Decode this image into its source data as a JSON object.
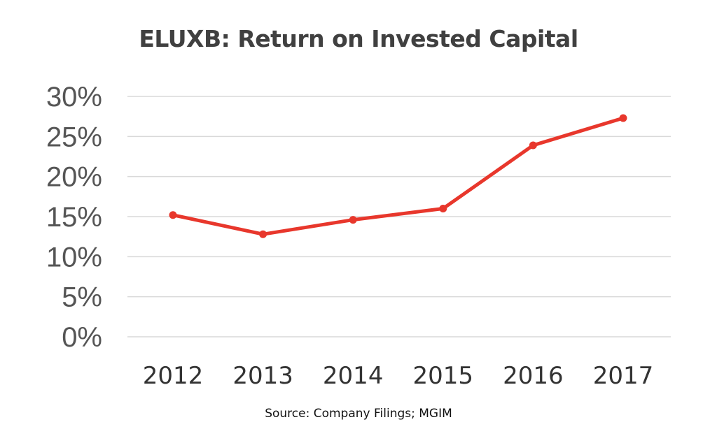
{
  "chart_data": {
    "type": "line",
    "title": "ELUXB: Return on Invested Capital",
    "source": "Source: Company Filings; MGIM",
    "categories": [
      "2012",
      "2013",
      "2014",
      "2015",
      "2016",
      "2017"
    ],
    "series": [
      {
        "values": [
          15.2,
          12.8,
          14.6,
          16.0,
          23.9,
          27.3
        ],
        "color": "#e8372c"
      }
    ],
    "yticks": [
      "0%",
      "5%",
      "10%",
      "15%",
      "20%",
      "25%",
      "30%"
    ],
    "ylim": [
      0,
      30
    ],
    "ystep": 5,
    "grid": true,
    "gridColor": "#d9d9d9"
  }
}
